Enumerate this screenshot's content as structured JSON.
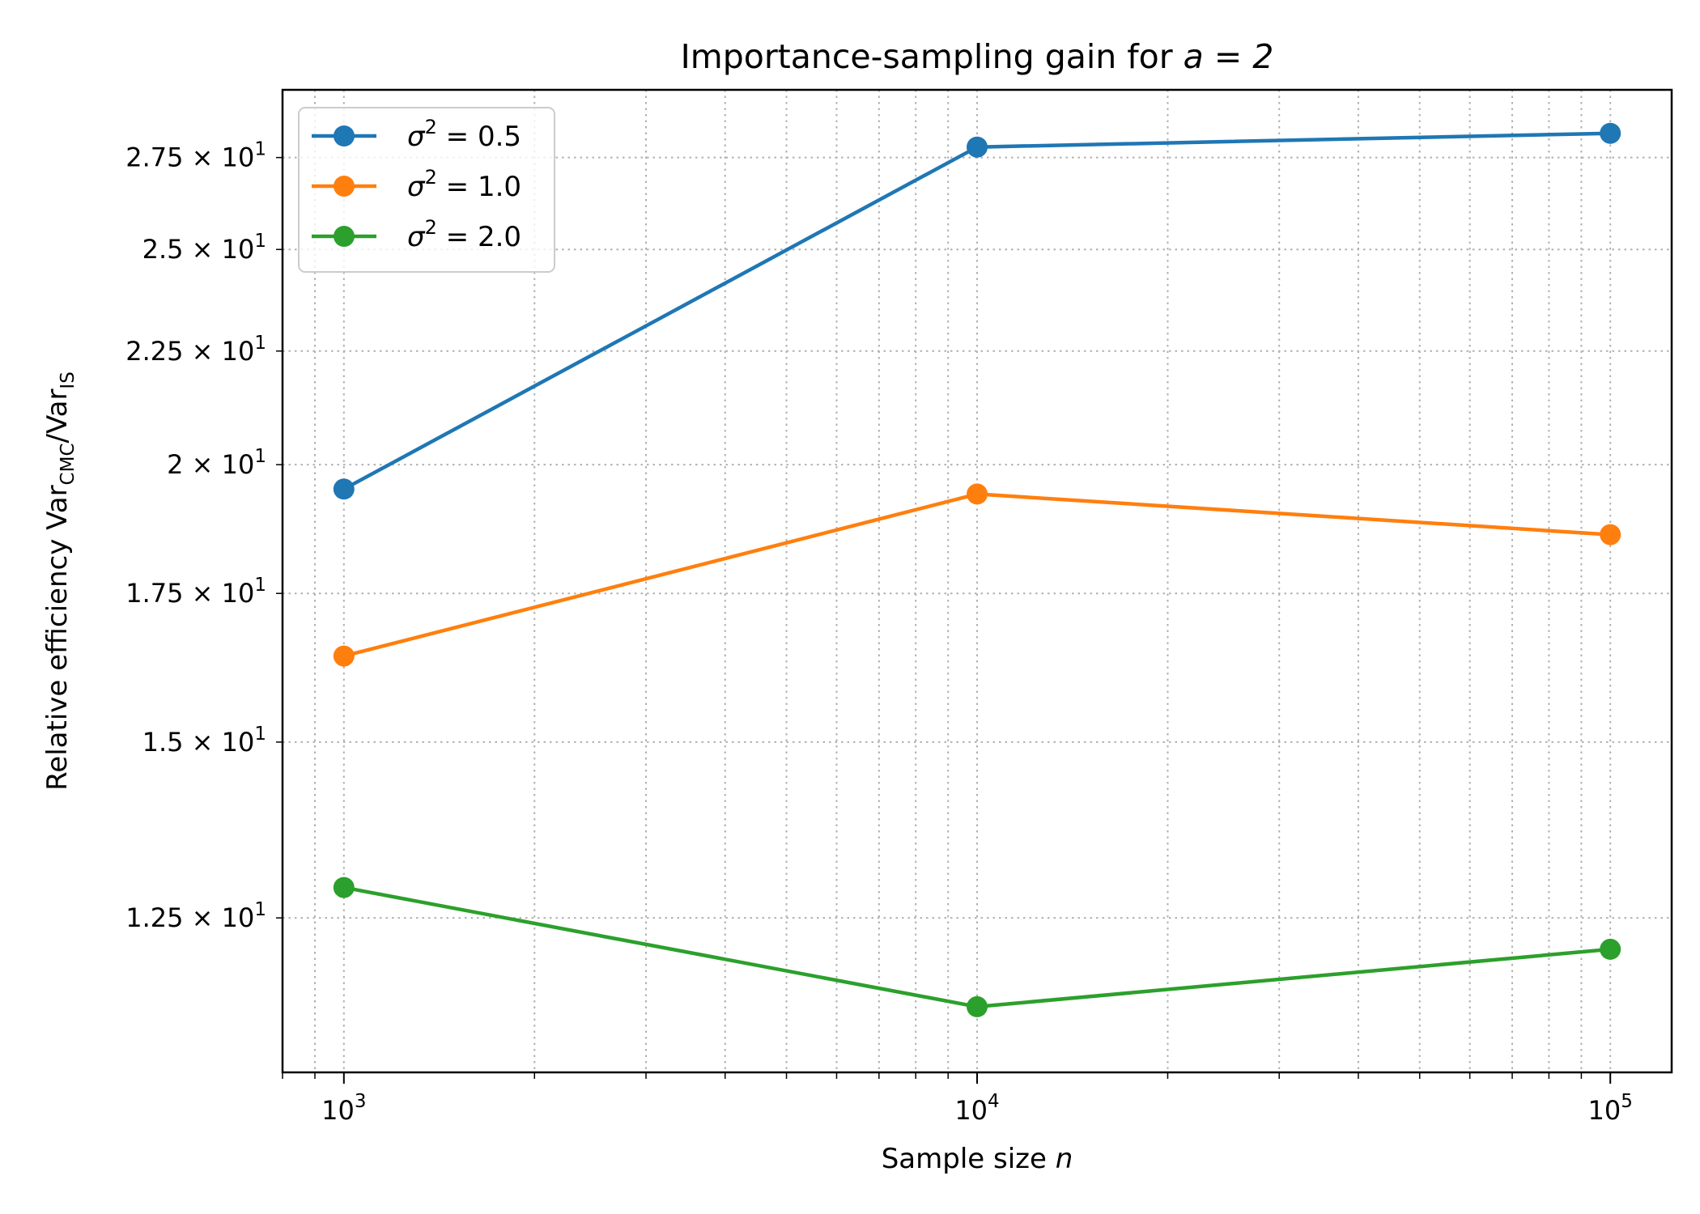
{
  "chart_data": {
    "type": "line",
    "title": {
      "text": "Importance-sampling gain for ",
      "math": "a = 2"
    },
    "xlabel": {
      "text": "Sample size  ",
      "var": "n"
    },
    "ylabel": {
      "text": "Relative efficiency  Var",
      "sub1": "CMC",
      "mid": "/Var",
      "sub2": "IS"
    },
    "x_scale": "log",
    "y_scale": "log",
    "xlim": [
      800,
      125000
    ],
    "ylim": [
      10.65,
      29.5
    ],
    "x": [
      1000,
      10000,
      100000
    ],
    "x_ticks": [
      {
        "value": 1000,
        "base": "10",
        "exp": "3"
      },
      {
        "value": 10000,
        "base": "10",
        "exp": "4"
      },
      {
        "value": 100000,
        "base": "10",
        "exp": "5"
      }
    ],
    "y_ticks": [
      {
        "value": 12.5,
        "label": "1.25 × 10",
        "exp": "1"
      },
      {
        "value": 15,
        "label": "1.5 × 10",
        "exp": "1"
      },
      {
        "value": 17.5,
        "label": "1.75 × 10",
        "exp": "1"
      },
      {
        "value": 20,
        "label": "2 × 10",
        "exp": "1"
      },
      {
        "value": 22.5,
        "label": "2.25 × 10",
        "exp": "1"
      },
      {
        "value": 25,
        "label": "2.5 × 10",
        "exp": "1"
      },
      {
        "value": 27.5,
        "label": "2.75 × 10",
        "exp": "1"
      }
    ],
    "grid": true,
    "legend_position": "upper-left",
    "series": [
      {
        "name": "σ",
        "sup": "2",
        "rest": " = 0.5",
        "color": "#1f77b4",
        "values": [
          19.5,
          27.8,
          28.2
        ]
      },
      {
        "name": "σ",
        "sup": "2",
        "rest": " = 1.0",
        "color": "#ff7f0e",
        "values": [
          16.4,
          19.4,
          18.6
        ]
      },
      {
        "name": "σ",
        "sup": "2",
        "rest": " = 2.0",
        "color": "#2ca02c",
        "values": [
          12.9,
          11.4,
          12.1
        ]
      }
    ]
  }
}
